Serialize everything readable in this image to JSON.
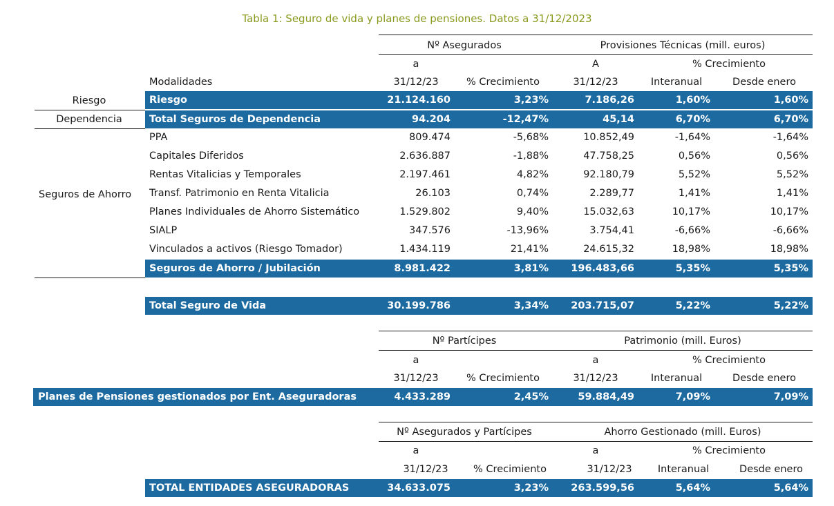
{
  "title": "Tabla 1: Seguro de vida y planes de pensiones. Datos a 31/12/2023",
  "section1": {
    "group_nasegurados": "Nº Asegurados",
    "group_provisiones": "Provisiones Técnicas (mill. euros)",
    "a_label1": "a",
    "a_label2": "A",
    "crec_label": "% Crecimiento",
    "modalidades": "Modalidades",
    "date1": "31/12/23",
    "pct_crec": "% Crecimiento",
    "date2": "31/12/23",
    "interanual": "Interanual",
    "desde_enero": "Desde enero",
    "left_riesgo": "Riesgo",
    "left_dependencia": "Dependencia",
    "left_ahorro": "Seguros de Ahorro",
    "rows": [
      {
        "name": "Riesgo",
        "n": "21.124.160",
        "nc": "3,23%",
        "p": "7.186,26",
        "pi": "1,60%",
        "pd": "1,60%"
      },
      {
        "name": "Total Seguros de Dependencia",
        "n": "94.204",
        "nc": "-12,47%",
        "p": "45,14",
        "pi": "6,70%",
        "pd": "6,70%"
      },
      {
        "name": "PPA",
        "n": "809.474",
        "nc": "-5,68%",
        "p": "10.852,49",
        "pi": "-1,64%",
        "pd": "-1,64%"
      },
      {
        "name": "Capitales Diferidos",
        "n": "2.636.887",
        "nc": "-1,88%",
        "p": "47.758,25",
        "pi": "0,56%",
        "pd": "0,56%"
      },
      {
        "name": "Rentas Vitalicias y Temporales",
        "n": "2.197.461",
        "nc": "4,82%",
        "p": "92.180,79",
        "pi": "5,52%",
        "pd": "5,52%"
      },
      {
        "name": "Transf. Patrimonio en Renta Vitalicia",
        "n": "26.103",
        "nc": "0,74%",
        "p": "2.289,77",
        "pi": "1,41%",
        "pd": "1,41%"
      },
      {
        "name": "Planes Individuales de Ahorro Sistemático",
        "n": "1.529.802",
        "nc": "9,40%",
        "p": "15.032,63",
        "pi": "10,17%",
        "pd": "10,17%"
      },
      {
        "name": "SIALP",
        "n": "347.576",
        "nc": "-13,96%",
        "p": "3.754,41",
        "pi": "-6,66%",
        "pd": "-6,66%"
      },
      {
        "name": "Vinculados a activos (Riesgo Tomador)",
        "n": "1.434.119",
        "nc": "21,41%",
        "p": "24.615,32",
        "pi": "18,98%",
        "pd": "18,98%"
      },
      {
        "name": "Seguros de Ahorro / Jubilación",
        "n": "8.981.422",
        "nc": "3,81%",
        "p": "196.483,66",
        "pi": "5,35%",
        "pd": "5,35%"
      }
    ],
    "total": {
      "name": "Total Seguro de Vida",
      "n": "30.199.786",
      "nc": "3,34%",
      "p": "203.715,07",
      "pi": "5,22%",
      "pd": "5,22%"
    }
  },
  "section2": {
    "group1": "Nº Partícipes",
    "group2": "Patrimonio (mill. Euros)",
    "a1": "a",
    "a2": "a",
    "crec": "% Crecimiento",
    "date1": "31/12/23",
    "pct_crec": "% Crecimiento",
    "date2": "31/12/23",
    "interanual": "Interanual",
    "desde_enero": "Desde enero",
    "row": {
      "name": "Planes de Pensiones gestionados por Ent. Aseguradoras",
      "n": "4.433.289",
      "nc": "2,45%",
      "p": "59.884,49",
      "pi": "7,09%",
      "pd": "7,09%"
    }
  },
  "section3": {
    "group1": "Nº Asegurados y Partícipes",
    "group2": "Ahorro Gestionado (mill. Euros)",
    "a1": "a",
    "a2": "a",
    "crec": "% Crecimiento",
    "date1": "31/12/23",
    "pct_crec": "% Crecimiento",
    "date2": "31/12/23",
    "interanual": "Interanual",
    "desde_enero": "Desde enero",
    "row": {
      "name": "TOTAL ENTIDADES ASEGURADORAS",
      "n": "34.633.075",
      "nc": "3,23%",
      "p": "263.599,56",
      "pi": "5,64%",
      "pd": "5,64%"
    }
  }
}
